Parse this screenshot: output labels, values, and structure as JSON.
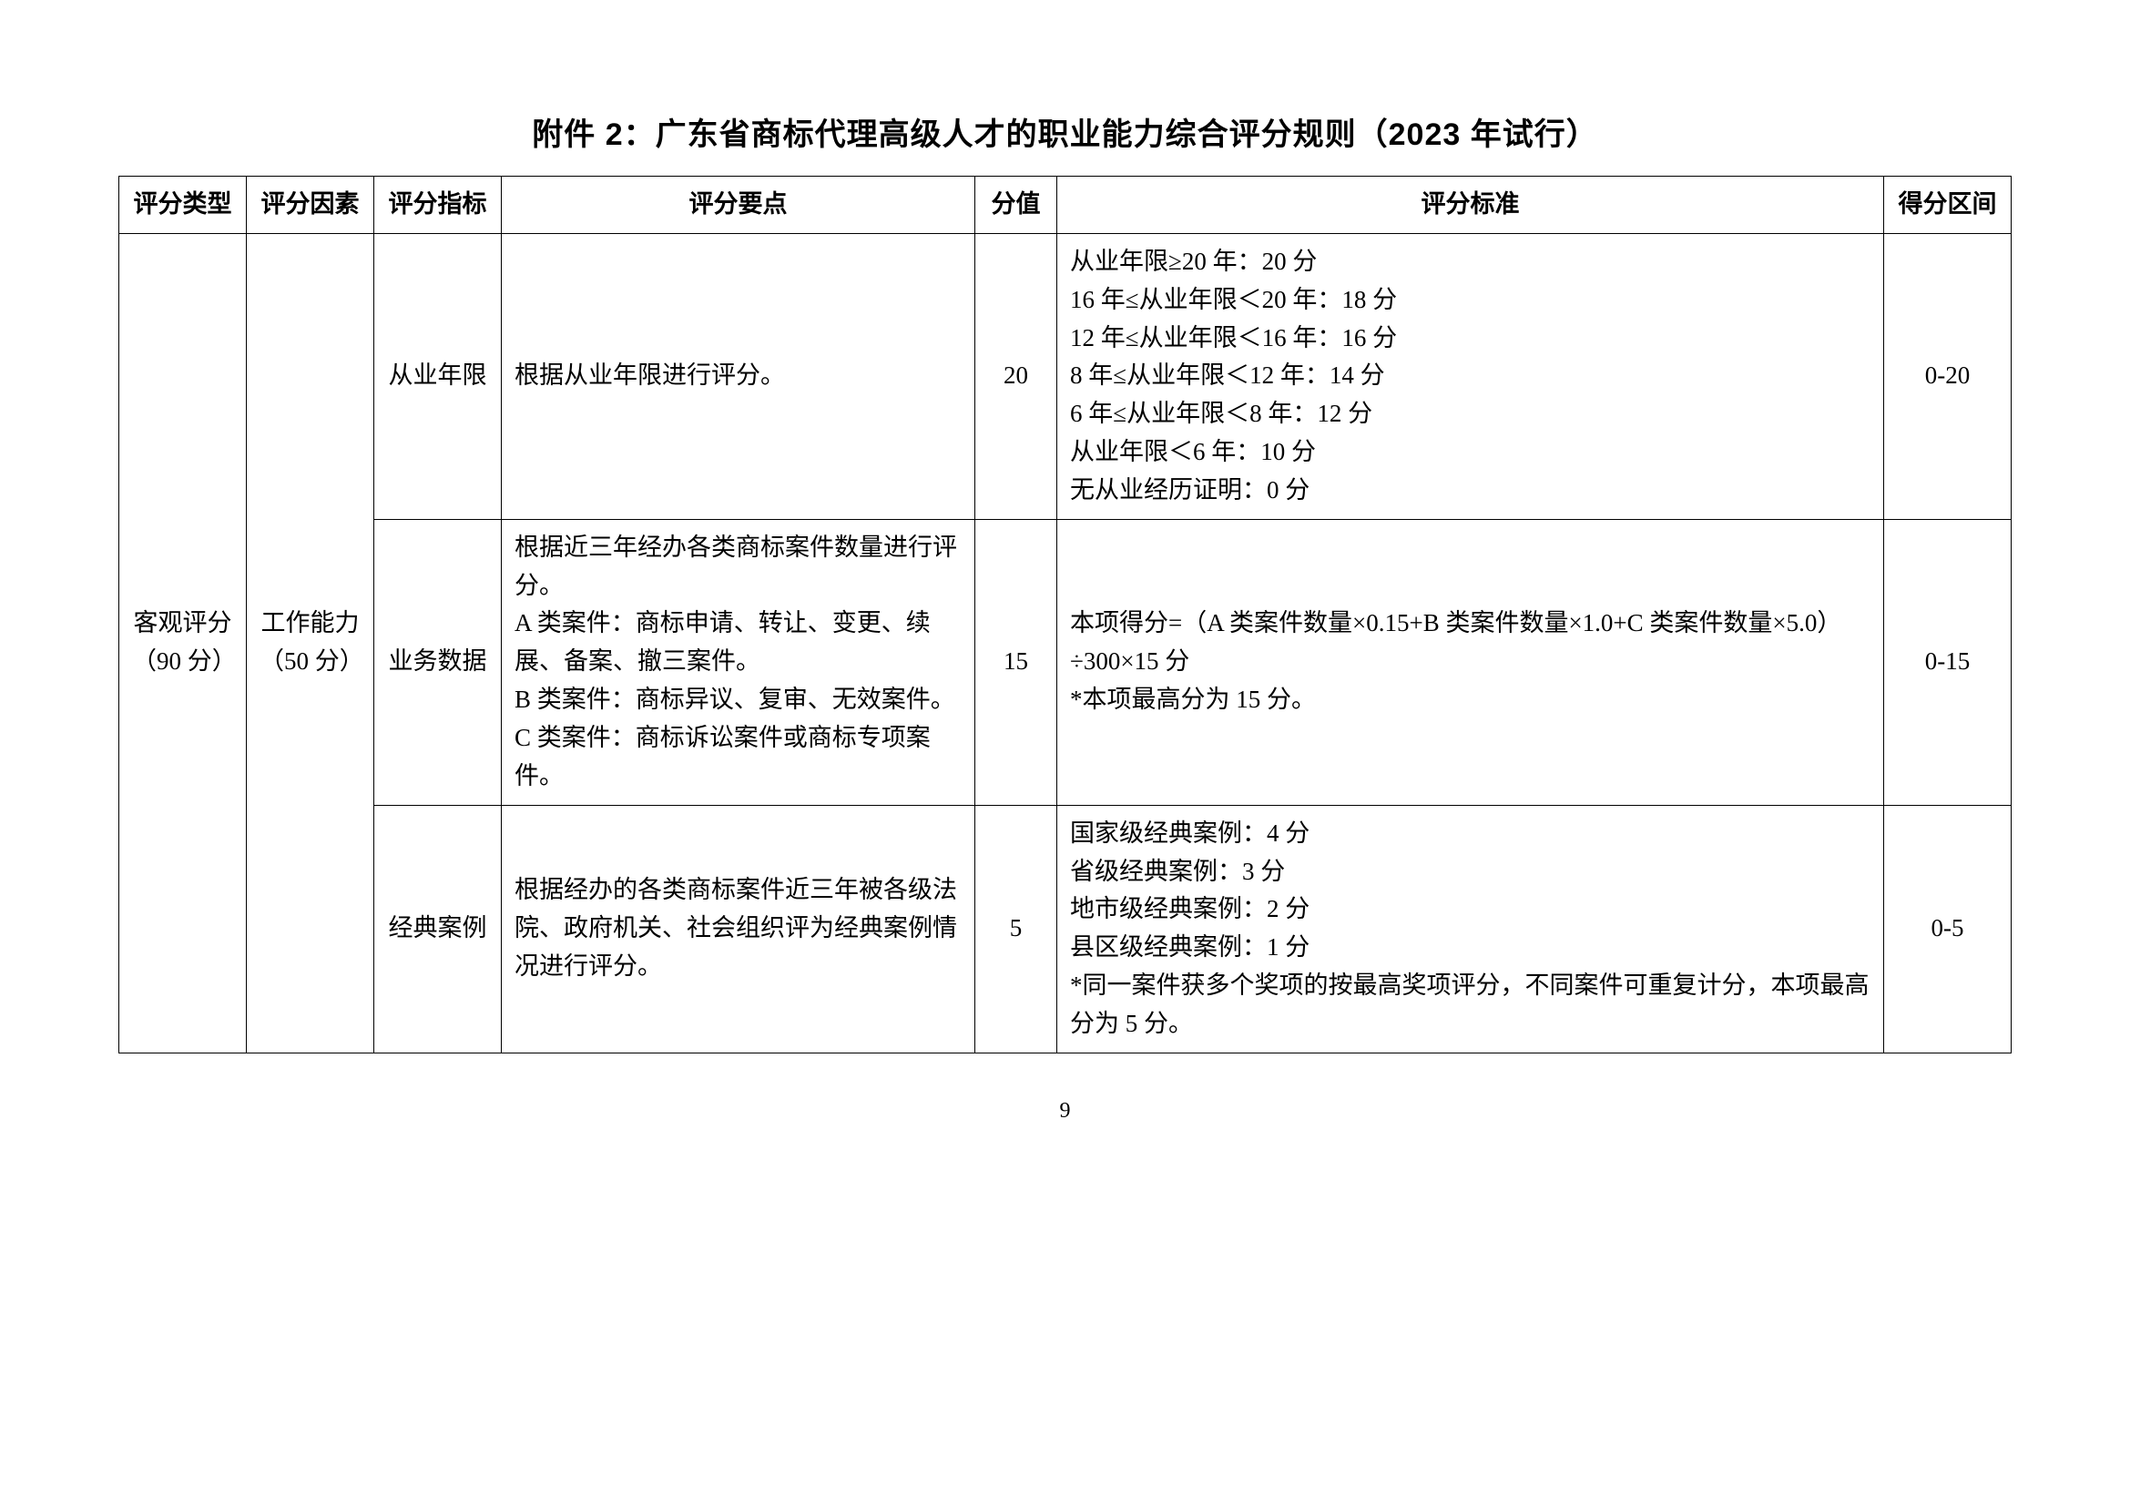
{
  "title": "附件 2：广东省商标代理高级人才的职业能力综合评分规则（2023 年试行）",
  "page_number": "9",
  "headers": {
    "type": "评分类型",
    "factor": "评分因素",
    "metric": "评分指标",
    "points": "评分要点",
    "score": "分值",
    "standard": "评分标准",
    "range": "得分区间"
  },
  "rows": [
    {
      "type": "客观评分\n（90 分）",
      "factor": "工作能力\n（50 分）",
      "metric": "从业年限",
      "points": "根据从业年限进行评分。",
      "score": "20",
      "standard": "从业年限≥20 年：20 分\n16 年≤从业年限＜20 年：18 分\n12 年≤从业年限＜16 年：16 分\n8 年≤从业年限＜12 年：14 分\n6 年≤从业年限＜8 年：12 分\n从业年限＜6 年：10 分\n无从业经历证明：0 分",
      "range": "0-20"
    },
    {
      "metric": "业务数据",
      "points": "根据近三年经办各类商标案件数量进行评分。\nA 类案件：商标申请、转让、变更、续展、备案、撤三案件。\nB 类案件：商标异议、复审、无效案件。\nC 类案件：商标诉讼案件或商标专项案件。",
      "score": "15",
      "standard": "本项得分=（A 类案件数量×0.15+B 类案件数量×1.0+C 类案件数量×5.0）÷300×15 分\n*本项最高分为 15 分。",
      "range": "0-15"
    },
    {
      "metric": "经典案例",
      "points": "根据经办的各类商标案件近三年被各级法院、政府机关、社会组织评为经典案例情况进行评分。",
      "score": "5",
      "standard": "国家级经典案例：4 分\n省级经典案例：3 分\n地市级经典案例：2 分\n县区级经典案例：1 分\n*同一案件获多个奖项的按最高奖项评分，不同案件可重复计分，本项最高分为 5 分。",
      "range": "0-5"
    }
  ]
}
